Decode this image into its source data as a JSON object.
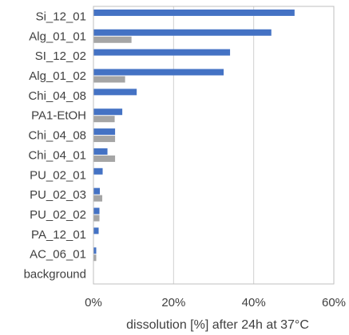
{
  "chart_data": {
    "type": "bar",
    "orientation": "horizontal",
    "categories": [
      "Si_12_01",
      "Alg_01_01",
      "SI_12_02",
      "Alg_01_02",
      "Chi_04_08",
      "PA1-EtOH",
      "Chi_04_08",
      "Chi_04_01",
      "PU_02_01",
      "PU_02_03",
      "PU_02_02",
      "PA_12_01",
      "AC_06_01",
      "background"
    ],
    "series": [
      {
        "values": [
          50.2,
          44.4,
          34.1,
          32.5,
          10.8,
          7.2,
          5.4,
          3.5,
          2.3,
          1.6,
          1.5,
          1.3,
          0.7,
          0
        ]
      },
      {
        "values": [
          0,
          9.5,
          0,
          7.9,
          0,
          5.3,
          5.4,
          5.4,
          0,
          2.2,
          1.5,
          0,
          0.7,
          0
        ]
      }
    ],
    "series_colors": [
      "#4472C4",
      "#A5A5A5"
    ],
    "title": "",
    "xlabel": "dissolution [%] after 24h at 37°C",
    "ylabel": "",
    "xlim": [
      0,
      60
    ],
    "x_ticks": [
      "0%",
      "20%",
      "40%",
      "60%"
    ],
    "grid": "vertical",
    "legend": "none"
  }
}
